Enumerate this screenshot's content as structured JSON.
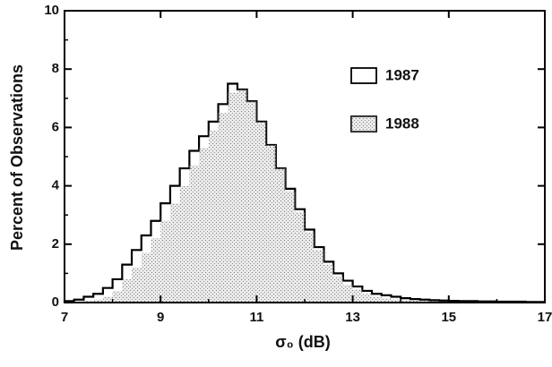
{
  "chart_data": {
    "type": "histogram",
    "xlabel": "σ₀ (dB)",
    "ylabel": "Percent of Observations",
    "bins": [
      7.0,
      7.2,
      7.4,
      7.6,
      7.8,
      8.0,
      8.2,
      8.4,
      8.6,
      8.8,
      9.0,
      9.2,
      9.4,
      9.6,
      9.8,
      10.0,
      10.2,
      10.4,
      10.6,
      10.8,
      11.0,
      11.2,
      11.4,
      11.6,
      11.8,
      12.0,
      12.2,
      12.4,
      12.6,
      12.8,
      13.0,
      13.2,
      13.4,
      13.6,
      13.8,
      14.0,
      14.2,
      14.4,
      14.6,
      14.8,
      15.0,
      15.2,
      15.4,
      15.6,
      15.8,
      16.0,
      16.2,
      16.4,
      16.6,
      16.8,
      17.0
    ],
    "series": [
      {
        "name": "1987",
        "color": "#ffffff",
        "values": [
          0.05,
          0.1,
          0.2,
          0.3,
          0.5,
          0.8,
          1.3,
          1.8,
          2.3,
          2.8,
          3.4,
          4.0,
          4.6,
          5.2,
          5.7,
          6.2,
          6.8,
          7.5,
          7.3,
          6.9,
          6.2,
          5.4,
          4.6,
          3.9,
          3.2,
          2.5,
          1.9,
          1.4,
          1.0,
          0.75,
          0.55,
          0.4,
          0.3,
          0.25,
          0.2,
          0.15,
          0.12,
          0.1,
          0.08,
          0.07,
          0.06,
          0.05,
          0.05,
          0.04,
          0.04,
          0.03,
          0.03,
          0.03,
          0.02,
          0.02
        ]
      },
      {
        "name": "1988",
        "color": "#c4c4c4",
        "values": [
          0,
          0,
          0.05,
          0.1,
          0.2,
          0.4,
          0.8,
          1.2,
          1.7,
          2.2,
          2.8,
          3.4,
          4.0,
          4.7,
          5.3,
          5.9,
          6.5,
          7.2,
          7.3,
          6.9,
          6.2,
          5.4,
          4.6,
          3.8,
          3.1,
          2.4,
          1.8,
          1.3,
          0.9,
          0.6,
          0.45,
          0.3,
          0.2,
          0.15,
          0.1,
          0.08,
          0.06,
          0.05,
          0.04,
          0.03,
          0.03,
          0.02,
          0.02,
          0.02,
          0.01,
          0.01,
          0.01,
          0.01,
          0,
          0
        ]
      }
    ],
    "xlim": [
      7,
      17
    ],
    "ylim": [
      0,
      10
    ],
    "xticks": [
      7,
      9,
      11,
      13,
      15,
      17
    ],
    "yticks": [
      0,
      2,
      4,
      6,
      8,
      10
    ],
    "legend": "upper right"
  }
}
